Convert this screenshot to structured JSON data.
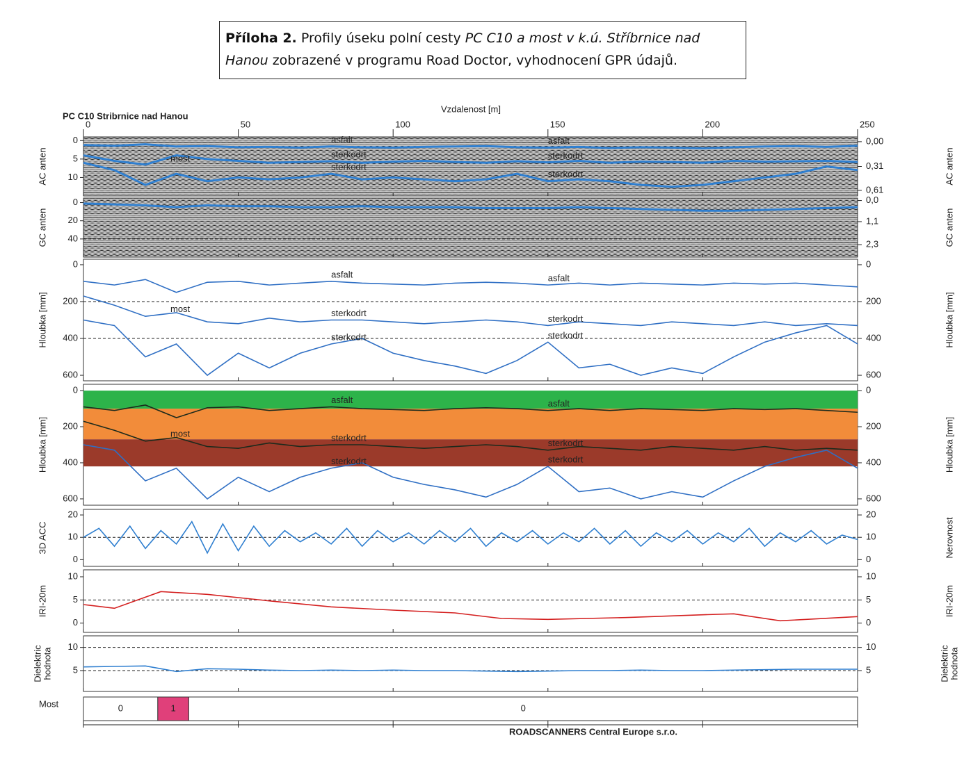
{
  "caption": [
    "Příloha 2.",
    "Profily úseku polní cesty",
    "PC C10 a most v k.ú. Stříbrnice nad",
    "Hanou",
    "zobrazené v programu Road Doctor, vyhodnocení GPR údajů."
  ],
  "figure_title": "PC C10 Stribrnice nad Hanou",
  "x_label": "Vzdalenost [m]",
  "footer": "ROADSCANNERS Central Europe s.r.o.",
  "xlim": [
    0,
    250
  ],
  "xticks": [
    0,
    50,
    100,
    150,
    200,
    250
  ],
  "chart_data": [
    {
      "type": "radargram",
      "ylabel": "AC anten",
      "y2label": "AC anten",
      "inverted": true,
      "ylim": [
        -1,
        15
      ],
      "yticks": [
        0,
        5,
        10
      ],
      "y2lim": [
        -0.06,
        0.68
      ],
      "y2ticks": [
        {
          "value": 0,
          "label": "0,00"
        },
        {
          "value": 0.31,
          "label": "0,31"
        },
        {
          "value": 0.61,
          "label": "0,61"
        }
      ],
      "annotation": "most",
      "x": [
        0,
        10,
        20,
        30,
        40,
        50,
        60,
        70,
        80,
        90,
        100,
        110,
        120,
        130,
        140,
        150,
        160,
        170,
        180,
        190,
        200,
        210,
        220,
        230,
        240,
        250
      ],
      "series": [
        {
          "name": "asfalt",
          "color": "#2f7fd0",
          "values": [
            1.2,
            1.4,
            1.0,
            1.6,
            1.5,
            1.8,
            1.7,
            1.9,
            1.6,
            1.8,
            1.9,
            1.7,
            1.6,
            1.5,
            1.8,
            1.9,
            1.7,
            2.0,
            1.8,
            1.9,
            2.1,
            1.8,
            1.6,
            1.5,
            1.7,
            1.4
          ]
        },
        {
          "name": "sterkodrt",
          "color": "#2f7fd0",
          "values": [
            4,
            5.5,
            6.5,
            4,
            5,
            5.5,
            6,
            5.8,
            5.6,
            6,
            5.7,
            5.5,
            5.8,
            6,
            5.6,
            5.9,
            5.5,
            6,
            5.7,
            5.8,
            6,
            5.5,
            5.7,
            5.6,
            5.5,
            5.8
          ]
        },
        {
          "name": "sterkodrt",
          "color": "#2f7fd0",
          "values": [
            6,
            8,
            12,
            9,
            11,
            10,
            10.5,
            10,
            9,
            10.5,
            10,
            10.5,
            11,
            10.5,
            9,
            11,
            10.5,
            11,
            12,
            12.5,
            12,
            11,
            10,
            9,
            7,
            8
          ]
        }
      ]
    },
    {
      "type": "radargram",
      "ylabel": "GC anten",
      "y2label": "GC anten",
      "inverted": true,
      "ylim": [
        -5,
        60
      ],
      "yticks": [
        0,
        20,
        40
      ],
      "y2lim": [
        -0.13,
        2.95
      ],
      "y2ticks": [
        {
          "value": 0,
          "label": "0,0"
        },
        {
          "value": 1.1,
          "label": "1,1"
        },
        {
          "value": 2.3,
          "label": "2,3"
        }
      ],
      "dashed": [
        40
      ],
      "x": [
        0,
        10,
        20,
        30,
        40,
        50,
        60,
        70,
        80,
        90,
        100,
        110,
        120,
        130,
        140,
        150,
        160,
        170,
        180,
        190,
        200,
        210,
        220,
        230,
        240,
        250
      ],
      "series": [
        {
          "color": "#2f7fd0",
          "values": [
            1,
            2,
            3,
            5,
            3,
            4,
            4,
            5,
            5,
            4,
            5,
            5,
            5,
            6,
            6,
            6,
            5,
            6,
            7,
            8,
            9,
            9,
            8,
            7,
            6,
            5
          ]
        }
      ]
    },
    {
      "type": "line",
      "ylabel": "Hloubka [mm]",
      "y2label": "Hloubka [mm]",
      "inverted": true,
      "ylim": [
        -30,
        630
      ],
      "yticks": [
        0,
        200,
        400,
        600
      ],
      "y2lim": [
        -30,
        630
      ],
      "y2ticks": [
        0,
        200,
        400,
        600
      ],
      "dashed": [
        200,
        400
      ],
      "annotation": "most",
      "x": [
        0,
        10,
        20,
        30,
        40,
        50,
        60,
        70,
        80,
        90,
        100,
        110,
        120,
        130,
        140,
        150,
        160,
        170,
        180,
        190,
        200,
        210,
        220,
        230,
        240,
        250
      ],
      "series": [
        {
          "name": "asfalt",
          "color": "#2f6fc4",
          "values": [
            90,
            110,
            80,
            150,
            95,
            90,
            110,
            100,
            90,
            100,
            105,
            110,
            100,
            95,
            100,
            110,
            100,
            110,
            100,
            105,
            110,
            100,
            105,
            100,
            110,
            120
          ]
        },
        {
          "name": "sterkodrt",
          "color": "#2f6fc4",
          "values": [
            170,
            220,
            280,
            260,
            310,
            320,
            290,
            310,
            300,
            300,
            310,
            320,
            310,
            300,
            310,
            330,
            310,
            320,
            330,
            310,
            320,
            330,
            310,
            330,
            320,
            330
          ]
        },
        {
          "name": "sterkodrt",
          "color": "#2f6fc4",
          "values": [
            300,
            330,
            500,
            430,
            600,
            480,
            560,
            480,
            430,
            400,
            480,
            520,
            550,
            590,
            520,
            420,
            560,
            540,
            600,
            560,
            590,
            500,
            420,
            370,
            330,
            430
          ]
        }
      ]
    },
    {
      "type": "line",
      "ylabel": "Hloubka [mm]",
      "y2label": "Hloubka [mm]",
      "inverted": true,
      "ylim": [
        -35,
        635
      ],
      "yticks": [
        0,
        200,
        400,
        600
      ],
      "y2lim": [
        -35,
        635
      ],
      "y2ticks": [
        0,
        200,
        400,
        600
      ],
      "annotation": "most",
      "bands": [
        {
          "from": 0,
          "to": 100,
          "color": "#2db34a"
        },
        {
          "from": 100,
          "to": 270,
          "color": "#f28c3a"
        },
        {
          "from": 270,
          "to": 420,
          "color": "#9b3a2a"
        }
      ],
      "x": [
        0,
        10,
        20,
        30,
        40,
        50,
        60,
        70,
        80,
        90,
        100,
        110,
        120,
        130,
        140,
        150,
        160,
        170,
        180,
        190,
        200,
        210,
        220,
        230,
        240,
        250
      ],
      "series": [
        {
          "name": "asfalt",
          "color": "#1c2a1c",
          "values": [
            90,
            110,
            80,
            150,
            95,
            90,
            110,
            100,
            90,
            100,
            105,
            110,
            100,
            95,
            100,
            110,
            100,
            110,
            100,
            105,
            110,
            100,
            105,
            100,
            110,
            120
          ]
        },
        {
          "name": "sterkodrt",
          "color": "#1c2a1c",
          "values": [
            170,
            220,
            280,
            260,
            310,
            320,
            290,
            310,
            300,
            300,
            310,
            320,
            310,
            300,
            310,
            330,
            310,
            320,
            330,
            310,
            320,
            330,
            310,
            330,
            320,
            330
          ]
        },
        {
          "name": "sterkodrt",
          "color": "#2f6fc4",
          "values": [
            300,
            330,
            500,
            430,
            600,
            480,
            560,
            480,
            430,
            400,
            480,
            520,
            550,
            590,
            520,
            420,
            560,
            540,
            600,
            560,
            590,
            500,
            420,
            370,
            330,
            430
          ]
        }
      ]
    },
    {
      "type": "line",
      "ylabel": "3D ACC",
      "y2label": "Nerovnost",
      "ylim": [
        -3,
        22.5
      ],
      "yticks": [
        0,
        10,
        20
      ],
      "y2lim": [
        -3,
        22.5
      ],
      "y2ticks": [
        0,
        10,
        20
      ],
      "dashed": [
        10
      ],
      "x": [
        0,
        5,
        10,
        15,
        20,
        25,
        30,
        35,
        40,
        45,
        50,
        55,
        60,
        65,
        70,
        75,
        80,
        85,
        90,
        95,
        100,
        105,
        110,
        115,
        120,
        125,
        130,
        135,
        140,
        145,
        150,
        155,
        160,
        165,
        170,
        175,
        180,
        185,
        190,
        195,
        200,
        205,
        210,
        215,
        220,
        225,
        230,
        235,
        240,
        245,
        250
      ],
      "series": [
        {
          "color": "#2f7fd0",
          "values": [
            10,
            14,
            6,
            15,
            5,
            13,
            7,
            17,
            3,
            16,
            4,
            15,
            6,
            13,
            8,
            12,
            7,
            14,
            6,
            13,
            8,
            12,
            7,
            13,
            8,
            14,
            6,
            12,
            8,
            13,
            7,
            12,
            8,
            14,
            7,
            13,
            6,
            12,
            8,
            13,
            7,
            12,
            8,
            14,
            6,
            12,
            8,
            13,
            7,
            11,
            9
          ]
        }
      ]
    },
    {
      "type": "line",
      "ylabel": "IRI-20m",
      "y2label": "IRI-20m",
      "ylim": [
        -2,
        11.5
      ],
      "yticks": [
        0,
        5,
        10
      ],
      "y2lim": [
        -2,
        11.5
      ],
      "y2ticks": [
        0,
        5,
        10
      ],
      "dashed": [
        5
      ],
      "x": [
        0,
        10,
        25,
        40,
        60,
        80,
        100,
        120,
        135,
        150,
        175,
        200,
        210,
        225,
        250
      ],
      "series": [
        {
          "color": "#d42020",
          "values": [
            4,
            3.2,
            6.8,
            6.2,
            4.8,
            3.5,
            2.8,
            2.2,
            1,
            0.8,
            1.2,
            1.8,
            2,
            0.5,
            1.4
          ]
        }
      ]
    },
    {
      "type": "line",
      "ylabel": [
        "Dielektric",
        "hodnota"
      ],
      "y2label": [
        "Dielektric",
        "hodnota"
      ],
      "ylim": [
        0.5,
        12.5
      ],
      "yticks": [
        5,
        10
      ],
      "y2lim": [
        0.5,
        12.5
      ],
      "y2ticks": [
        5,
        10
      ],
      "dashed": [
        5,
        10
      ],
      "x": [
        0,
        10,
        20,
        30,
        40,
        50,
        60,
        70,
        80,
        90,
        100,
        110,
        120,
        130,
        140,
        150,
        160,
        170,
        180,
        190,
        200,
        210,
        220,
        230,
        240,
        250
      ],
      "series": [
        {
          "color": "#2f7fd0",
          "values": [
            5.8,
            5.9,
            6.0,
            4.8,
            5.4,
            5.3,
            5.1,
            5.0,
            5.1,
            5.0,
            5.1,
            5.0,
            5.0,
            4.9,
            4.8,
            4.9,
            5.0,
            5.0,
            5.1,
            5.0,
            5.0,
            5.1,
            5.2,
            5.3,
            5.3,
            5.3
          ]
        }
      ]
    },
    {
      "type": "segments",
      "ylabel": "Most",
      "edges": [
        0,
        24,
        34,
        250
      ],
      "values": [
        0,
        1,
        0
      ],
      "colors": [
        "#ffffff",
        "#e0407a",
        "#ffffff"
      ]
    }
  ]
}
